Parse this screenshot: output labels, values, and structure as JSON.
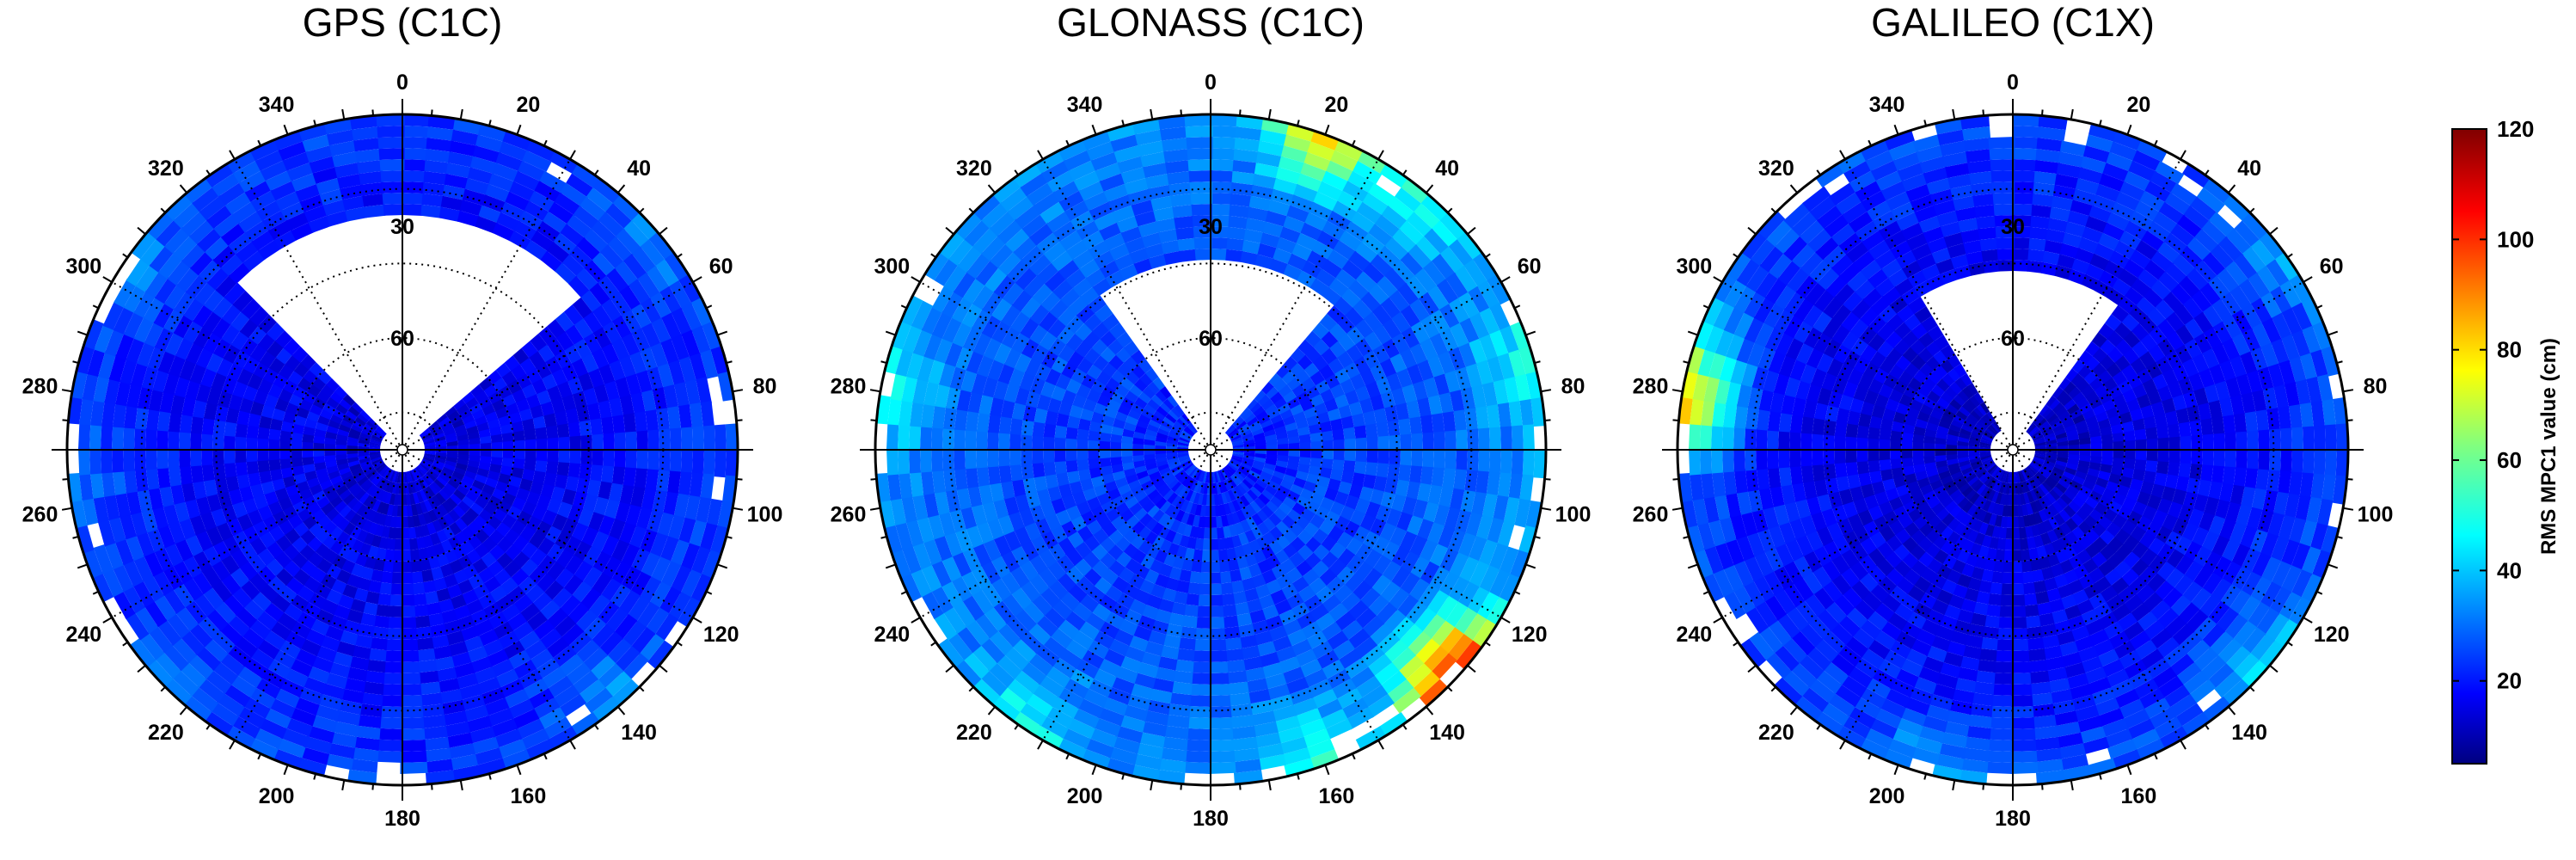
{
  "chart_data": [
    {
      "type": "heatmap",
      "projection": "polar-skyplot",
      "title": "GPS (C1C)",
      "theta_direction": "clockwise",
      "theta_zero": "north",
      "azimuth_ticks": [
        0,
        20,
        40,
        60,
        80,
        100,
        120,
        140,
        160,
        180,
        200,
        220,
        240,
        260,
        280,
        300,
        320,
        340
      ],
      "elevation_ticks": [
        30,
        60
      ],
      "elevation_range": [
        0,
        90
      ],
      "coverage_hole": {
        "az_from": 315,
        "az_to": 48,
        "min_elevation": 28
      },
      "pattern": {
        "base": 17,
        "rim": 26,
        "spikes": [
          [
            50,
            10
          ],
          [
            140,
            14
          ],
          [
            225,
            10
          ],
          [
            305,
            12
          ],
          [
            265,
            9
          ]
        ]
      },
      "seed": 11
    },
    {
      "type": "heatmap",
      "projection": "polar-skyplot",
      "title": "GLONASS (C1C)",
      "theta_direction": "clockwise",
      "theta_zero": "north",
      "azimuth_ticks": [
        0,
        20,
        40,
        60,
        80,
        100,
        120,
        140,
        160,
        180,
        200,
        220,
        240,
        260,
        280,
        300,
        320,
        340
      ],
      "elevation_ticks": [
        30,
        60
      ],
      "elevation_range": [
        0,
        90
      ],
      "coverage_hole": {
        "az_from": 325,
        "az_to": 40,
        "min_elevation": 40
      },
      "pattern": {
        "base": 25,
        "rim": 36,
        "spikes": [
          [
            20,
            45
          ],
          [
            40,
            18
          ],
          [
            130,
            48
          ],
          [
            135,
            40
          ],
          [
            160,
            22
          ],
          [
            215,
            16
          ],
          [
            75,
            18
          ],
          [
            280,
            16
          ]
        ]
      },
      "seed": 23
    },
    {
      "type": "heatmap",
      "projection": "polar-skyplot",
      "title": "GALILEO (C1X)",
      "theta_direction": "clockwise",
      "theta_zero": "north",
      "azimuth_ticks": [
        0,
        20,
        40,
        60,
        80,
        100,
        120,
        140,
        160,
        180,
        200,
        220,
        240,
        260,
        280,
        300,
        320,
        340
      ],
      "elevation_ticks": [
        30,
        60
      ],
      "elevation_range": [
        0,
        90
      ],
      "coverage_hole": {
        "az_from": 330,
        "az_to": 38,
        "min_elevation": 42
      },
      "pattern": {
        "base": 15,
        "rim": 28,
        "spikes": [
          [
            278,
            55
          ],
          [
            130,
            18
          ],
          [
            290,
            12
          ],
          [
            55,
            10
          ],
          [
            195,
            14
          ]
        ]
      },
      "seed": 37
    }
  ],
  "colorbar": {
    "label": "RMS MPC1  value (cm)",
    "min": 5,
    "max": 120,
    "ticks": [
      20,
      40,
      60,
      80,
      100,
      120
    ],
    "colormap": "jet"
  }
}
